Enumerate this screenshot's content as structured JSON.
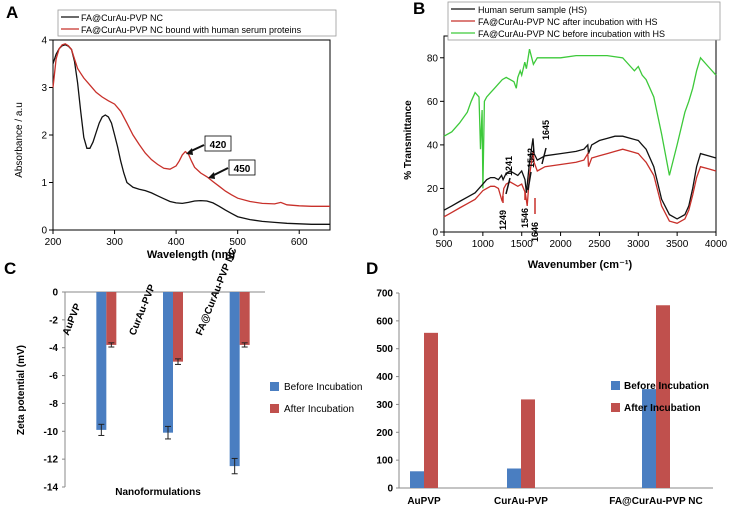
{
  "colors": {
    "black": "#111111",
    "red": "#c8302a",
    "green": "#3dc93a",
    "blue": "#4a7ec1",
    "darkred": "#c0504d",
    "arrow": "#111111"
  },
  "chart_data": [
    {
      "panel": "A",
      "type": "line",
      "xlabel": "Wavelength (nm)",
      "ylabel": "Absorbance / a.u",
      "xlim": [
        200,
        650
      ],
      "ylim": [
        0,
        4
      ],
      "xticks": [
        "200",
        "300",
        "400",
        "500",
        "600"
      ],
      "yticks": [
        "0",
        "1",
        "2",
        "3",
        "4"
      ],
      "legend": [
        "FA@CurAu-PVP NC",
        "FA@CurAu-PVP NC bound with human serum proteins"
      ],
      "annotations": [
        "420",
        "450"
      ],
      "series": [
        {
          "name": "FA@CurAu-PVP NC",
          "color": "#111111",
          "x": [
            200,
            205,
            210,
            215,
            220,
            225,
            230,
            235,
            240,
            245,
            250,
            255,
            260,
            265,
            270,
            275,
            280,
            285,
            290,
            295,
            300,
            305,
            310,
            315,
            320,
            330,
            340,
            350,
            360,
            370,
            380,
            390,
            400,
            410,
            420,
            430,
            440,
            450,
            460,
            470,
            480,
            490,
            500,
            520,
            540,
            560,
            580,
            600,
            620,
            650
          ],
          "y": [
            3.5,
            3.7,
            3.82,
            3.88,
            3.9,
            3.87,
            3.8,
            3.55,
            3.1,
            2.5,
            1.95,
            1.72,
            1.72,
            1.85,
            2.05,
            2.25,
            2.38,
            2.42,
            2.38,
            2.25,
            2.0,
            1.75,
            1.45,
            1.2,
            1.0,
            0.9,
            0.86,
            0.83,
            0.78,
            0.72,
            0.66,
            0.6,
            0.57,
            0.56,
            0.58,
            0.61,
            0.62,
            0.61,
            0.57,
            0.5,
            0.42,
            0.35,
            0.28,
            0.22,
            0.18,
            0.16,
            0.14,
            0.13,
            0.12,
            0.12
          ]
        },
        {
          "name": "FA@CurAu-PVP NC bound with human serum proteins",
          "color": "#c8302a",
          "x": [
            200,
            205,
            210,
            215,
            220,
            225,
            230,
            235,
            240,
            245,
            250,
            260,
            270,
            280,
            290,
            300,
            310,
            320,
            330,
            340,
            350,
            360,
            370,
            380,
            390,
            400,
            405,
            410,
            415,
            420,
            425,
            430,
            440,
            450,
            460,
            470,
            480,
            490,
            500,
            520,
            540,
            560,
            570,
            580,
            600,
            620,
            650
          ],
          "y": [
            3.0,
            3.6,
            3.82,
            3.9,
            3.92,
            3.88,
            3.8,
            3.6,
            3.4,
            3.3,
            3.2,
            3.05,
            2.9,
            2.8,
            2.72,
            2.65,
            2.5,
            2.25,
            2.0,
            1.8,
            1.62,
            1.48,
            1.38,
            1.3,
            1.28,
            1.35,
            1.45,
            1.58,
            1.65,
            1.6,
            1.45,
            1.32,
            1.2,
            1.12,
            1.02,
            0.92,
            0.82,
            0.74,
            0.67,
            0.6,
            0.56,
            0.55,
            0.58,
            0.53,
            0.51,
            0.5,
            0.5
          ]
        }
      ]
    },
    {
      "panel": "B",
      "type": "line",
      "xlabel": "Wavenumber (cm⁻¹)",
      "ylabel": "% Transmittance",
      "xlim": [
        500,
        4000
      ],
      "ylim": [
        0,
        90
      ],
      "xticks": [
        "500",
        "1000",
        "1500",
        "2000",
        "2500",
        "3000",
        "3500",
        "4000"
      ],
      "yticks": [
        "0",
        "20",
        "40",
        "60",
        "80"
      ],
      "legend": [
        "Human serum sample (HS)",
        "FA@CurAu-PVP NC  after incubation with HS",
        "FA@CurAu-PVP NC  before incubation with HS"
      ],
      "annotations_top": [
        "1241",
        "1542",
        "1645"
      ],
      "annotations_bottom": [
        "1249",
        "1546",
        "1646"
      ],
      "series": [
        {
          "name": "FA@CurAu-PVP NC  before incubation with HS",
          "color": "#3dc93a",
          "x": [
            500,
            600,
            700,
            800,
            850,
            900,
            950,
            970,
            990,
            1000,
            1020,
            1050,
            1100,
            1150,
            1200,
            1250,
            1300,
            1350,
            1400,
            1430,
            1450,
            1480,
            1500,
            1540,
            1560,
            1600,
            1650,
            1700,
            1800,
            2000,
            2200,
            2400,
            2600,
            2800,
            2900,
            2950,
            3000,
            3050,
            3100,
            3200,
            3300,
            3400,
            3500,
            3600,
            3650,
            3700,
            3750,
            3800,
            3900,
            4000
          ],
          "y": [
            44,
            46,
            50,
            55,
            60,
            64,
            62,
            38,
            56,
            20,
            60,
            62,
            64,
            66,
            68,
            70,
            71,
            70,
            69,
            66,
            71,
            74,
            72,
            78,
            75,
            84,
            77,
            80,
            80,
            80,
            81,
            81,
            81,
            80,
            76,
            74,
            76,
            72,
            70,
            62,
            45,
            26,
            40,
            55,
            60,
            66,
            74,
            80,
            76,
            72
          ]
        },
        {
          "name": "Human serum sample (HS)",
          "color": "#111111",
          "x": [
            500,
            600,
            700,
            800,
            900,
            950,
            1000,
            1050,
            1100,
            1150,
            1200,
            1241,
            1260,
            1300,
            1350,
            1400,
            1450,
            1500,
            1542,
            1560,
            1600,
            1645,
            1660,
            1700,
            1800,
            2000,
            2200,
            2300,
            2350,
            2360,
            2400,
            2500,
            2600,
            2700,
            2800,
            2900,
            3000,
            3050,
            3100,
            3200,
            3300,
            3400,
            3500,
            3600,
            3650,
            3700,
            3750,
            3800,
            3900,
            4000
          ],
          "y": [
            10,
            12,
            14,
            16,
            18,
            20,
            22,
            24,
            25,
            25,
            24,
            26,
            24,
            27,
            28,
            27,
            26,
            28,
            24,
            18,
            32,
            43,
            36,
            33,
            35,
            36,
            37,
            38,
            40,
            36,
            40,
            42,
            43,
            44,
            44,
            43,
            42,
            40,
            38,
            30,
            15,
            8,
            6,
            8,
            12,
            20,
            30,
            36,
            35,
            34
          ]
        },
        {
          "name": "FA@CurAu-PVP NC  after incubation with HS",
          "color": "#c8302a",
          "x": [
            500,
            600,
            700,
            800,
            900,
            950,
            1000,
            1050,
            1100,
            1150,
            1200,
            1249,
            1270,
            1300,
            1350,
            1400,
            1450,
            1500,
            1546,
            1570,
            1600,
            1646,
            1660,
            1700,
            1800,
            2000,
            2200,
            2300,
            2350,
            2360,
            2400,
            2500,
            2600,
            2700,
            2800,
            2900,
            3000,
            3050,
            3100,
            3200,
            3300,
            3400,
            3500,
            3600,
            3650,
            3700,
            3750,
            3800,
            3900,
            4000
          ],
          "y": [
            7,
            9,
            11,
            13,
            15,
            17,
            19,
            20,
            21,
            21,
            20,
            14,
            20,
            22,
            23,
            22,
            21,
            22,
            18,
            12,
            26,
            37,
            32,
            28,
            30,
            31,
            32,
            33,
            36,
            30,
            34,
            35,
            36,
            37,
            38,
            37,
            36,
            34,
            32,
            26,
            12,
            5,
            4,
            6,
            10,
            17,
            25,
            30,
            29,
            28
          ]
        }
      ]
    },
    {
      "panel": "C",
      "type": "bar",
      "xlabel": "Nanoformulations",
      "ylabel": "Zeta potential (mV)",
      "ylim": [
        -14,
        0
      ],
      "yticks": [
        "0",
        "-2",
        "-4",
        "-6",
        "-8",
        "-10",
        "-12",
        "-14"
      ],
      "categories": [
        "AuPVP",
        "CurAu-PVP",
        "FA@CurAu-PVP NC"
      ],
      "series": [
        {
          "name": "Before Incubation",
          "color": "#4a7ec1",
          "values": [
            -9.9,
            -10.1,
            -12.5
          ],
          "errors": [
            0.4,
            0.45,
            0.55
          ]
        },
        {
          "name": "After Incubation",
          "color": "#c0504d",
          "values": [
            -3.8,
            -5.0,
            -3.8
          ],
          "errors": [
            0.15,
            0.2,
            0.15
          ]
        }
      ]
    },
    {
      "panel": "D",
      "type": "bar",
      "xlabel": "",
      "ylabel": "",
      "ylim": [
        0,
        700
      ],
      "yticks": [
        "0",
        "100",
        "200",
        "300",
        "400",
        "500",
        "600",
        "700"
      ],
      "categories": [
        "AuPVP",
        "CurAu-PVP",
        "FA@CurAu-PVP NC"
      ],
      "series": [
        {
          "name": "Before Incubation",
          "color": "#4a7ec1",
          "values": [
            60,
            70,
            355
          ]
        },
        {
          "name": "After Incubation",
          "color": "#c0504d",
          "values": [
            557,
            318,
            656
          ]
        }
      ]
    }
  ]
}
